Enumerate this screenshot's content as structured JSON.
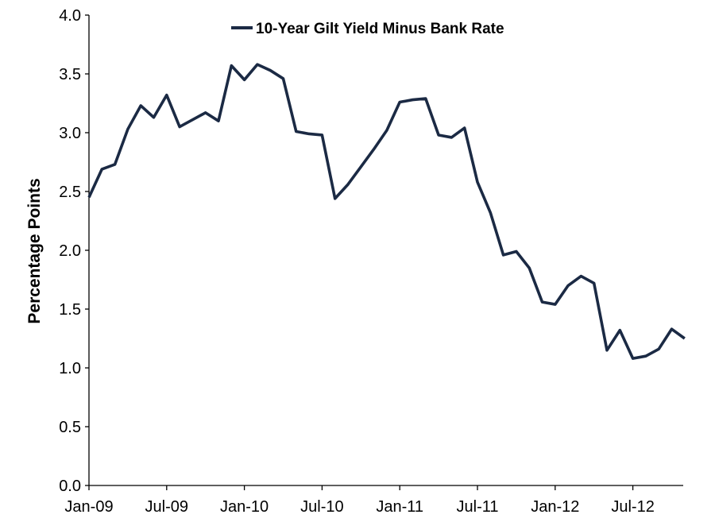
{
  "chart_data": {
    "type": "line",
    "title": "",
    "xlabel": "",
    "ylabel": "Percentage Points",
    "ylim": [
      0,
      4
    ],
    "y_ticks": [
      "0.0",
      "0.5",
      "1.0",
      "1.5",
      "2.0",
      "2.5",
      "3.0",
      "3.5",
      "4.0"
    ],
    "x_tick_labels": [
      "Jan-09",
      "Jul-09",
      "Jan-10",
      "Jul-10",
      "Jan-11",
      "Jul-11",
      "Jan-12",
      "Jul-12"
    ],
    "grid": false,
    "legend_position": "top-center",
    "colors": {
      "series": "#1b2a44",
      "axis": "#000000"
    },
    "x": [
      "Jan-09",
      "Feb-09",
      "Mar-09",
      "Apr-09",
      "May-09",
      "Jun-09",
      "Jul-09",
      "Aug-09",
      "Sep-09",
      "Oct-09",
      "Nov-09",
      "Dec-09",
      "Jan-10",
      "Feb-10",
      "Mar-10",
      "Apr-10",
      "May-10",
      "Jun-10",
      "Jul-10",
      "Aug-10",
      "Sep-10",
      "Oct-10",
      "Nov-10",
      "Dec-10",
      "Jan-11",
      "Feb-11",
      "Mar-11",
      "Apr-11",
      "May-11",
      "Jun-11",
      "Jul-11",
      "Aug-11",
      "Sep-11",
      "Oct-11",
      "Nov-11",
      "Dec-11",
      "Jan-12",
      "Feb-12",
      "Mar-12",
      "Apr-12",
      "May-12",
      "Jun-12",
      "Jul-12",
      "Aug-12",
      "Sep-12",
      "Oct-12",
      "Nov-12"
    ],
    "series": [
      {
        "name": "10-Year Gilt Yield Minus Bank Rate",
        "values": [
          2.45,
          2.69,
          2.73,
          3.03,
          3.23,
          3.13,
          3.32,
          3.05,
          3.11,
          3.17,
          3.1,
          3.57,
          3.45,
          3.58,
          3.53,
          3.46,
          3.01,
          2.99,
          2.98,
          2.44,
          2.56,
          2.71,
          2.86,
          3.02,
          3.26,
          3.28,
          3.29,
          2.98,
          2.96,
          3.04,
          2.58,
          2.32,
          1.96,
          1.99,
          1.85,
          1.56,
          1.54,
          1.7,
          1.78,
          1.72,
          1.15,
          1.32,
          1.08,
          1.1,
          1.16,
          1.33,
          1.25
        ]
      }
    ]
  }
}
